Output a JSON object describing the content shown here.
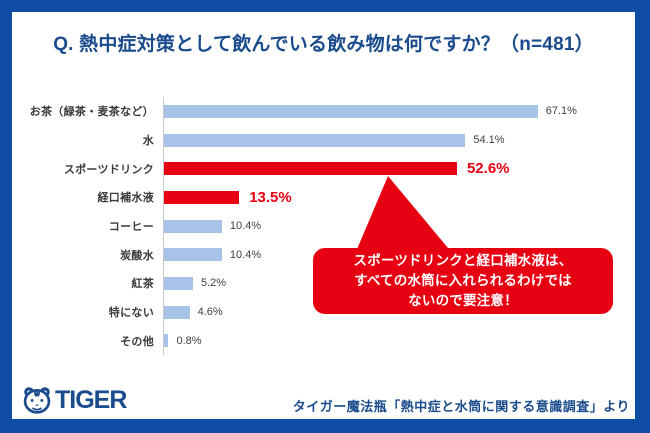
{
  "title": "Q. 熱中症対策として飲んでいる飲み物は何ですか？（n=481）",
  "chart_data": {
    "type": "bar",
    "orientation": "horizontal",
    "title": "Q. 熱中症対策として飲んでいる飲み物は何ですか？（n=481）",
    "sample_size": "n=481",
    "categories": [
      "お茶（緑茶・麦茶など）",
      "水",
      "スポーツドリンク",
      "経口補水液",
      "コーヒー",
      "炭酸水",
      "紅茶",
      "特にない",
      "その他"
    ],
    "values": [
      67.1,
      54.1,
      52.6,
      13.5,
      10.4,
      10.4,
      5.2,
      4.6,
      0.8
    ],
    "value_labels": [
      "67.1%",
      "54.1%",
      "52.6%",
      "13.5%",
      "10.4%",
      "10.4%",
      "5.2%",
      "4.6%",
      "0.8%"
    ],
    "highlight_indices": [
      2,
      3
    ],
    "xlim": [
      0,
      84
    ],
    "grid": false,
    "legend": "none",
    "bar_colors": {
      "default": "#A7C4E8",
      "highlight": "#E60012"
    }
  },
  "callout": {
    "lines": [
      "スポーツドリンクと経口補水液は、",
      "すべての水筒に入れられるわけでは",
      "ないので要注意！"
    ],
    "bg": "#E60012",
    "text_color": "#ffffff"
  },
  "footer": {
    "logo_text": "TIGER",
    "source": "タイガー魔法瓶「熱中症と水筒に関する意識調査」より"
  },
  "colors": {
    "frame_blue": "#0E4DA3",
    "title_blue": "#1A4B8C",
    "bar_blue": "#A7C4E8",
    "accent_red": "#E60012",
    "axis_gray": "#C9C9C9",
    "value_gray": "#404040"
  }
}
